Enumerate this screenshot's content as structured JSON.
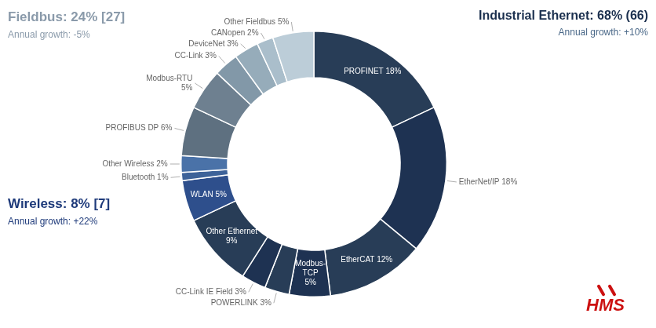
{
  "chart_data": {
    "type": "doughnut",
    "categories": [
      "PROFINET 18%",
      "EtherNet/IP 18%",
      "EtherCAT 12%",
      "Modbus-\nTCP\n5%",
      "POWERLINK 3%",
      "CC-Link IE Field 3%",
      "Other Ethernet\n9%",
      "WLAN 5%",
      "Bluetooth 1%",
      "Other Wireless 2%",
      "PROFIBUS DP 6%",
      "Modbus-RTU\n5%",
      "CC-Link 3%",
      "DeviceNet 3%",
      "CANopen 2%",
      "Other Fieldbus 5%"
    ],
    "values": [
      18,
      18,
      12,
      5,
      3,
      3,
      9,
      5,
      1,
      2,
      6,
      5,
      3,
      3,
      2,
      5
    ],
    "colors": [
      "#283d57",
      "#1e3252",
      "#283d57",
      "#1e3252",
      "#283d57",
      "#1e3252",
      "#283d57",
      "#2e4f8c",
      "#3d6299",
      "#4a72a8",
      "#5e7080",
      "#6e8090",
      "#8298a8",
      "#96acba",
      "#aabecb",
      "#bccdd8"
    ],
    "annotations": [
      {
        "text": "Fieldbus: 24% [27]",
        "color": "#8a9aaa"
      },
      {
        "text": "Annual growth: -5%",
        "color": "#8a9aaa"
      },
      {
        "text": "Industrial Ethernet: 68% (66)",
        "color": "#1a2f4e"
      },
      {
        "text": "Annual growth: +10%",
        "color": "#4a6888"
      },
      {
        "text": "Wireless: 8% [7]",
        "color": "#1e3a7a"
      },
      {
        "text": "Annual growth: +22%",
        "color": "#1e3a7a"
      },
      {
        "text": "HMS",
        "color": "#cc1111"
      }
    ]
  }
}
